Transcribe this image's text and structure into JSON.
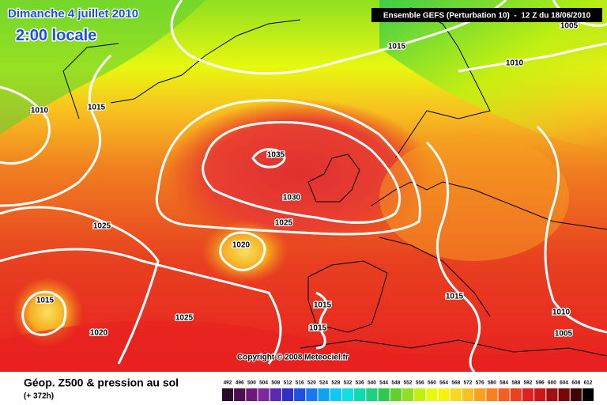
{
  "header": {
    "title": "Dimanche 4 juillet 2010",
    "subtitle": "2:00 locale",
    "run": "Ensemble GEFS (Perturbation 10)  -  12 Z du 18/06/2010"
  },
  "isobar_labels": [
    "1005",
    "1015",
    "1010",
    "1015",
    "1010",
    "1035",
    "1030",
    "1025",
    "1025",
    "1020",
    "1015",
    "1015",
    "1015",
    "1025",
    "1015",
    "1020",
    "1010",
    "1005"
  ],
  "copyright": "Copyright © 2008 Meteociel.fr",
  "legend": {
    "title": "Géop. Z500 & pression au sol",
    "lead": "(+ 372h)",
    "ticks": [
      492,
      496,
      500,
      504,
      508,
      512,
      516,
      520,
      524,
      528,
      532,
      536,
      540,
      544,
      548,
      552,
      556,
      560,
      564,
      568,
      572,
      576,
      580,
      584,
      588,
      592,
      596,
      600,
      604,
      608,
      612
    ],
    "colors": [
      "#2a0a2a",
      "#4a1050",
      "#6a1a78",
      "#7a2a9a",
      "#5a2ab0",
      "#3030c8",
      "#2050e0",
      "#1878f0",
      "#10a0f0",
      "#10c8f0",
      "#10e0e0",
      "#10d8b0",
      "#20d080",
      "#30c850",
      "#60d030",
      "#90e020",
      "#c0f010",
      "#e8f810",
      "#f8f010",
      "#f8d820",
      "#f8c020",
      "#f8a020",
      "#f88020",
      "#f06020",
      "#e84020",
      "#e02020",
      "#c81818",
      "#a01010",
      "#780808",
      "#400404",
      "#000000"
    ]
  }
}
